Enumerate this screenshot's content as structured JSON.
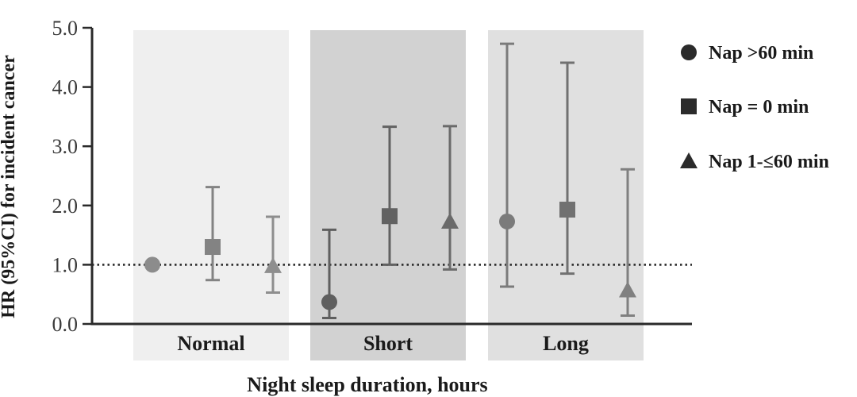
{
  "chart_data": {
    "type": "scatter",
    "title": "",
    "xlabel": "Night sleep duration, hours",
    "ylabel": "HR (95%CI) for incident cancer",
    "ylim": [
      0,
      5
    ],
    "yticks": [
      "0.0",
      "1.0",
      "2.0",
      "3.0",
      "4.0",
      "5.0"
    ],
    "reference_line": 1.0,
    "legend_position": "right",
    "categories": [
      "Normal",
      "Short",
      "Long"
    ],
    "category_colors": [
      "#efefef",
      "#d2d2d2",
      "#e0e0e0"
    ],
    "series": [
      {
        "name": "Nap >60 min",
        "marker": "circle",
        "values": [
          1.0,
          0.37,
          1.73
        ],
        "ci_low": [
          1.0,
          0.1,
          0.63
        ],
        "ci_high": [
          1.0,
          1.59,
          4.73
        ]
      },
      {
        "name": "Nap = 0 min",
        "marker": "square",
        "values": [
          1.3,
          1.82,
          1.93
        ],
        "ci_low": [
          0.74,
          1.0,
          0.85
        ],
        "ci_high": [
          2.31,
          3.33,
          4.41
        ]
      },
      {
        "name": "Nap 1-≤60 min",
        "marker": "triangle",
        "values": [
          0.98,
          1.73,
          0.57
        ],
        "ci_low": [
          0.53,
          0.92,
          0.14
        ],
        "ci_high": [
          1.81,
          3.34,
          2.61
        ]
      }
    ]
  }
}
